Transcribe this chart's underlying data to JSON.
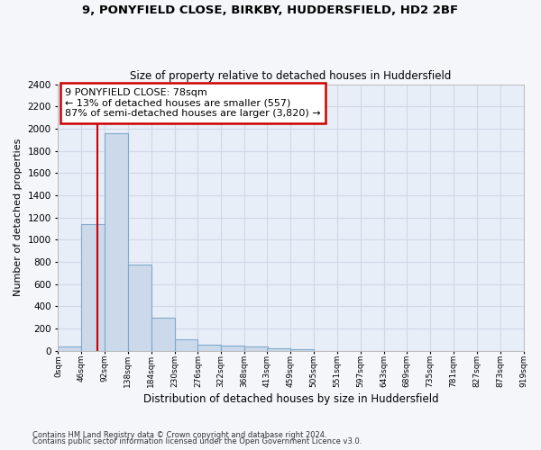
{
  "title1": "9, PONYFIELD CLOSE, BIRKBY, HUDDERSFIELD, HD2 2BF",
  "title2": "Size of property relative to detached houses in Huddersfield",
  "xlabel": "Distribution of detached houses by size in Huddersfield",
  "ylabel": "Number of detached properties",
  "bar_color": "#ccd9ea",
  "bar_edge_color": "#7eaacb",
  "background_color": "#e8eef7",
  "grid_color": "#d0d8e8",
  "bin_edges": [
    0,
    46,
    92,
    138,
    184,
    230,
    276,
    322,
    368,
    413,
    459,
    505,
    551,
    597,
    643,
    689,
    735,
    781,
    827,
    873,
    919
  ],
  "bar_heights": [
    35,
    1140,
    1960,
    775,
    300,
    105,
    50,
    42,
    35,
    22,
    15,
    0,
    0,
    0,
    0,
    0,
    0,
    0,
    0,
    0
  ],
  "tick_labels": [
    "0sqm",
    "46sqm",
    "92sqm",
    "138sqm",
    "184sqm",
    "230sqm",
    "276sqm",
    "322sqm",
    "368sqm",
    "413sqm",
    "459sqm",
    "505sqm",
    "551sqm",
    "597sqm",
    "643sqm",
    "689sqm",
    "735sqm",
    "781sqm",
    "827sqm",
    "873sqm",
    "919sqm"
  ],
  "ylim": [
    0,
    2400
  ],
  "yticks": [
    0,
    200,
    400,
    600,
    800,
    1000,
    1200,
    1400,
    1600,
    1800,
    2000,
    2200,
    2400
  ],
  "property_line_x": 78,
  "annotation_line1": "9 PONYFIELD CLOSE: 78sqm",
  "annotation_line2": "← 13% of detached houses are smaller (557)",
  "annotation_line3": "87% of semi-detached houses are larger (3,820) →",
  "annotation_box_color": "#ffffff",
  "annotation_box_edge": "#cc0000",
  "footer1": "Contains HM Land Registry data © Crown copyright and database right 2024.",
  "footer2": "Contains public sector information licensed under the Open Government Licence v3.0."
}
